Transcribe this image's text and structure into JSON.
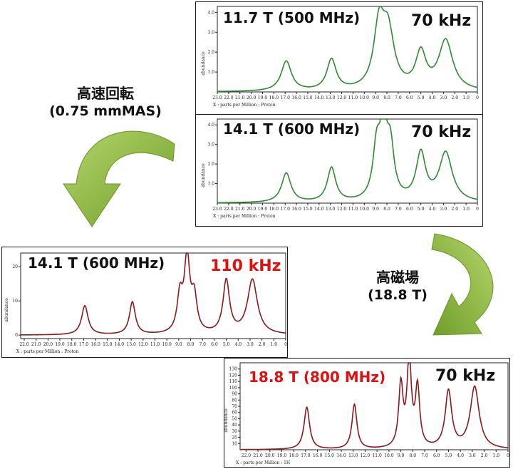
{
  "callouts": {
    "fast_spin_line1": "高速回転",
    "fast_spin_line2": "(0.75 mmMAS)",
    "high_field_line1": "高磁場",
    "high_field_line2": "(18.8 T)"
  },
  "colors": {
    "green_trace": "#2e8b2e",
    "red_trace": "#8b1a1a",
    "highlight_red": "#e01010",
    "arrow_green": "#8cb83c"
  },
  "chart_data": [
    {
      "type": "line",
      "field_label": "11.7 T (500 MHz)",
      "spin_label": "70 kHz",
      "ylabel": "abundance",
      "xlabel": "X : parts per Million : Proton",
      "x_ticks": [
        "23.0",
        "22.0",
        "21.0",
        "20.0",
        "19.0",
        "18.0",
        "17.0",
        "16.0",
        "15.0",
        "14.0",
        "13.0",
        "12.0",
        "11.0",
        "10.0",
        "9.0",
        "8.0",
        "7.0",
        "6.0",
        "5.0",
        "4.0",
        "3.0",
        "2.0",
        "1.0",
        "0"
      ],
      "y_ticks": [
        "1.0",
        "2.0",
        "3.0",
        "4.0"
      ],
      "xlim": [
        23,
        0
      ],
      "ylim": [
        0,
        4.3
      ],
      "peaks": [
        {
          "x": 16.9,
          "y": 1.5,
          "w": 0.55
        },
        {
          "x": 12.9,
          "y": 1.55,
          "w": 0.5
        },
        {
          "x": 8.7,
          "y": 3.0,
          "w": 0.55
        },
        {
          "x": 7.9,
          "y": 2.8,
          "w": 0.65
        },
        {
          "x": 5.0,
          "y": 1.8,
          "w": 0.55
        },
        {
          "x": 2.8,
          "y": 2.5,
          "w": 0.75
        }
      ]
    },
    {
      "type": "line",
      "field_label": "14.1 T (600 MHz)",
      "spin_label": "70 kHz",
      "ylabel": "abundance",
      "xlabel": "X : parts per Million : Proton",
      "x_ticks": [
        "23.0",
        "22.0",
        "21.0",
        "20.0",
        "19.0",
        "18.0",
        "17.0",
        "16.0",
        "15.0",
        "14.0",
        "13.0",
        "12.0",
        "11.0",
        "10.0",
        "9.0",
        "8.0",
        "7.0",
        "6.0",
        "5.0",
        "4.0",
        "3.0",
        "2.0",
        "1.0",
        "0"
      ],
      "y_ticks": [
        "1.0",
        "2.0",
        "3.0",
        "4.0"
      ],
      "xlim": [
        23,
        0
      ],
      "ylim": [
        0,
        4.3
      ],
      "peaks": [
        {
          "x": 16.9,
          "y": 1.5,
          "w": 0.5
        },
        {
          "x": 12.9,
          "y": 1.75,
          "w": 0.45
        },
        {
          "x": 8.9,
          "y": 2.6,
          "w": 0.4
        },
        {
          "x": 8.3,
          "y": 3.5,
          "w": 0.35
        },
        {
          "x": 7.7,
          "y": 2.6,
          "w": 0.4
        },
        {
          "x": 5.0,
          "y": 2.4,
          "w": 0.5
        },
        {
          "x": 2.8,
          "y": 2.5,
          "w": 0.7
        }
      ]
    },
    {
      "type": "line",
      "field_label": "14.1 T (600 MHz)",
      "spin_label": "110 kHz",
      "ylabel": "abundance",
      "xlabel": "X : parts per Million : Proton",
      "x_ticks": [
        "22.0",
        "21.0",
        "20.0",
        "19.0",
        "18.0",
        "17.0",
        "16.0",
        "15.0",
        "14.0",
        "13.0",
        "12.0",
        "11.0",
        "10.0",
        "9.0",
        "8.0",
        "7.0",
        "6.0",
        "5.0",
        "4.0",
        "3.0",
        "2.0",
        "1.0",
        "0"
      ],
      "y_ticks": [
        "0",
        "10",
        "20"
      ],
      "xlim": [
        22.3,
        0
      ],
      "ylim": [
        -1,
        24
      ],
      "peaks": [
        {
          "x": 16.9,
          "y": 8.5,
          "w": 0.33
        },
        {
          "x": 12.9,
          "y": 9.5,
          "w": 0.3
        },
        {
          "x": 8.9,
          "y": 10.5,
          "w": 0.28
        },
        {
          "x": 8.3,
          "y": 21.5,
          "w": 0.28
        },
        {
          "x": 7.7,
          "y": 10.0,
          "w": 0.28
        },
        {
          "x": 5.0,
          "y": 15.5,
          "w": 0.33
        },
        {
          "x": 2.8,
          "y": 16.0,
          "w": 0.5
        }
      ]
    },
    {
      "type": "line",
      "field_label": "18.8 T (800 MHz)",
      "spin_label": "70 kHz",
      "ylabel": "abundance",
      "xlabel": "X : parts per Million : 1H",
      "x_ticks": [
        "22.0",
        "21.0",
        "20.0",
        "19.0",
        "18.0",
        "17.0",
        "16.0",
        "15.0",
        "14.0",
        "13.0",
        "12.0",
        "11.0",
        "10.0",
        "9.0",
        "8.0",
        "7.0",
        "6.0",
        "5.0",
        "4.0",
        "3.0",
        "2.0",
        "1.0",
        "0"
      ],
      "y_ticks": [
        "10",
        "20",
        "30",
        "40",
        "50",
        "60",
        "70",
        "80",
        "90",
        "100",
        "110",
        "120",
        "130"
      ],
      "xlim": [
        22.5,
        0
      ],
      "ylim": [
        0,
        140
      ],
      "peaks": [
        {
          "x": 16.9,
          "y": 68,
          "w": 0.28
        },
        {
          "x": 12.9,
          "y": 72,
          "w": 0.25
        },
        {
          "x": 9.0,
          "y": 100,
          "w": 0.22
        },
        {
          "x": 8.3,
          "y": 140,
          "w": 0.22
        },
        {
          "x": 7.6,
          "y": 95,
          "w": 0.22
        },
        {
          "x": 5.0,
          "y": 92,
          "w": 0.33
        },
        {
          "x": 2.8,
          "y": 100,
          "w": 0.45
        }
      ]
    }
  ]
}
